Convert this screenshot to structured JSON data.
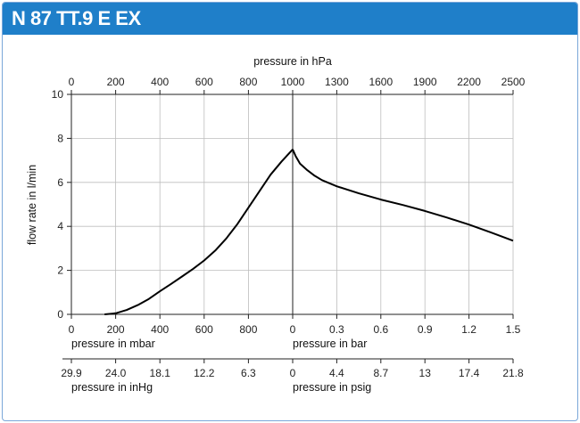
{
  "header": {
    "title": "N 87 TT.9 E EX"
  },
  "colors": {
    "header_bg": "#1f7fc9",
    "header_text": "#ffffff",
    "curve": "#000000",
    "grid": "#bdbdbd"
  },
  "chart_data": {
    "type": "line",
    "title": "N 87 TT.9 E EX",
    "ylabel": "flow rate in l/min",
    "ylim": [
      0,
      10
    ],
    "y_ticks": [
      "0",
      "2",
      "4",
      "6",
      "8",
      "10"
    ],
    "grid": true,
    "top_axis": {
      "label": "pressure in hPa",
      "ticks": [
        "0",
        "200",
        "400",
        "600",
        "800",
        "1000",
        "1300",
        "1600",
        "1900",
        "2200",
        "2500"
      ]
    },
    "bottom_left_axis": {
      "label": "pressure in mbar",
      "ticks": [
        "0",
        "200",
        "400",
        "600",
        "800",
        "0"
      ]
    },
    "bottom_right_axis": {
      "label": "pressure in bar",
      "ticks": [
        "0.3",
        "0.6",
        "0.9",
        "1.2",
        "1.5"
      ]
    },
    "second_left_axis": {
      "label": "pressure in inHg",
      "ticks": [
        "29.9",
        "24.0",
        "18.1",
        "12.2",
        "6.3",
        "0"
      ]
    },
    "second_right_axis": {
      "label": "pressure in psig",
      "ticks": [
        "4.4",
        "8.7",
        "13",
        "17.4",
        "21.8"
      ]
    },
    "series": [
      {
        "segment": "vacuum",
        "x_unit": "mbar",
        "x": [
          150,
          200,
          250,
          300,
          350,
          400,
          450,
          500,
          550,
          600,
          650,
          700,
          750,
          800,
          850,
          900,
          950,
          1000
        ],
        "y": [
          0.0,
          0.05,
          0.2,
          0.42,
          0.7,
          1.05,
          1.38,
          1.72,
          2.07,
          2.45,
          2.9,
          3.45,
          4.1,
          4.85,
          5.6,
          6.35,
          6.95,
          7.5
        ]
      },
      {
        "segment": "pressure",
        "x_unit": "bar",
        "x": [
          0.0,
          0.02,
          0.05,
          0.1,
          0.15,
          0.2,
          0.3,
          0.45,
          0.6,
          0.75,
          0.9,
          1.05,
          1.2,
          1.35,
          1.5
        ],
        "y": [
          7.5,
          7.2,
          6.85,
          6.55,
          6.3,
          6.1,
          5.82,
          5.5,
          5.22,
          4.97,
          4.7,
          4.4,
          4.08,
          3.72,
          3.35
        ]
      }
    ]
  }
}
